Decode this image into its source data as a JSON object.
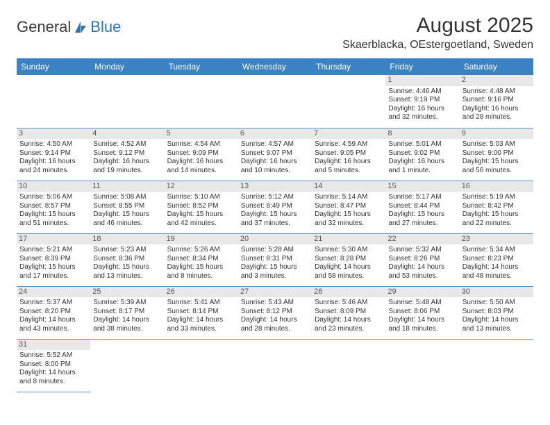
{
  "logo": {
    "text1": "General",
    "text2": "Blue"
  },
  "title": "August 2025",
  "location": "Skaerblacka, OEstergoetland, Sweden",
  "colors": {
    "header_bg": "#3b82c4",
    "header_text": "#ffffff",
    "daynum_bg": "#e8e8e8",
    "border": "#5a8fc0",
    "logo_blue": "#2a72b5"
  },
  "day_headers": [
    "Sunday",
    "Monday",
    "Tuesday",
    "Wednesday",
    "Thursday",
    "Friday",
    "Saturday"
  ],
  "weeks": [
    [
      null,
      null,
      null,
      null,
      null,
      {
        "n": "1",
        "sr": "Sunrise: 4:46 AM",
        "ss": "Sunset: 9:19 PM",
        "d1": "Daylight: 16 hours",
        "d2": "and 32 minutes."
      },
      {
        "n": "2",
        "sr": "Sunrise: 4:48 AM",
        "ss": "Sunset: 9:16 PM",
        "d1": "Daylight: 16 hours",
        "d2": "and 28 minutes."
      }
    ],
    [
      {
        "n": "3",
        "sr": "Sunrise: 4:50 AM",
        "ss": "Sunset: 9:14 PM",
        "d1": "Daylight: 16 hours",
        "d2": "and 24 minutes."
      },
      {
        "n": "4",
        "sr": "Sunrise: 4:52 AM",
        "ss": "Sunset: 9:12 PM",
        "d1": "Daylight: 16 hours",
        "d2": "and 19 minutes."
      },
      {
        "n": "5",
        "sr": "Sunrise: 4:54 AM",
        "ss": "Sunset: 9:09 PM",
        "d1": "Daylight: 16 hours",
        "d2": "and 14 minutes."
      },
      {
        "n": "6",
        "sr": "Sunrise: 4:57 AM",
        "ss": "Sunset: 9:07 PM",
        "d1": "Daylight: 16 hours",
        "d2": "and 10 minutes."
      },
      {
        "n": "7",
        "sr": "Sunrise: 4:59 AM",
        "ss": "Sunset: 9:05 PM",
        "d1": "Daylight: 16 hours",
        "d2": "and 5 minutes."
      },
      {
        "n": "8",
        "sr": "Sunrise: 5:01 AM",
        "ss": "Sunset: 9:02 PM",
        "d1": "Daylight: 16 hours",
        "d2": "and 1 minute."
      },
      {
        "n": "9",
        "sr": "Sunrise: 5:03 AM",
        "ss": "Sunset: 9:00 PM",
        "d1": "Daylight: 15 hours",
        "d2": "and 56 minutes."
      }
    ],
    [
      {
        "n": "10",
        "sr": "Sunrise: 5:06 AM",
        "ss": "Sunset: 8:57 PM",
        "d1": "Daylight: 15 hours",
        "d2": "and 51 minutes."
      },
      {
        "n": "11",
        "sr": "Sunrise: 5:08 AM",
        "ss": "Sunset: 8:55 PM",
        "d1": "Daylight: 15 hours",
        "d2": "and 46 minutes."
      },
      {
        "n": "12",
        "sr": "Sunrise: 5:10 AM",
        "ss": "Sunset: 8:52 PM",
        "d1": "Daylight: 15 hours",
        "d2": "and 42 minutes."
      },
      {
        "n": "13",
        "sr": "Sunrise: 5:12 AM",
        "ss": "Sunset: 8:49 PM",
        "d1": "Daylight: 15 hours",
        "d2": "and 37 minutes."
      },
      {
        "n": "14",
        "sr": "Sunrise: 5:14 AM",
        "ss": "Sunset: 8:47 PM",
        "d1": "Daylight: 15 hours",
        "d2": "and 32 minutes."
      },
      {
        "n": "15",
        "sr": "Sunrise: 5:17 AM",
        "ss": "Sunset: 8:44 PM",
        "d1": "Daylight: 15 hours",
        "d2": "and 27 minutes."
      },
      {
        "n": "16",
        "sr": "Sunrise: 5:19 AM",
        "ss": "Sunset: 8:42 PM",
        "d1": "Daylight: 15 hours",
        "d2": "and 22 minutes."
      }
    ],
    [
      {
        "n": "17",
        "sr": "Sunrise: 5:21 AM",
        "ss": "Sunset: 8:39 PM",
        "d1": "Daylight: 15 hours",
        "d2": "and 17 minutes."
      },
      {
        "n": "18",
        "sr": "Sunrise: 5:23 AM",
        "ss": "Sunset: 8:36 PM",
        "d1": "Daylight: 15 hours",
        "d2": "and 13 minutes."
      },
      {
        "n": "19",
        "sr": "Sunrise: 5:26 AM",
        "ss": "Sunset: 8:34 PM",
        "d1": "Daylight: 15 hours",
        "d2": "and 8 minutes."
      },
      {
        "n": "20",
        "sr": "Sunrise: 5:28 AM",
        "ss": "Sunset: 8:31 PM",
        "d1": "Daylight: 15 hours",
        "d2": "and 3 minutes."
      },
      {
        "n": "21",
        "sr": "Sunrise: 5:30 AM",
        "ss": "Sunset: 8:28 PM",
        "d1": "Daylight: 14 hours",
        "d2": "and 58 minutes."
      },
      {
        "n": "22",
        "sr": "Sunrise: 5:32 AM",
        "ss": "Sunset: 8:26 PM",
        "d1": "Daylight: 14 hours",
        "d2": "and 53 minutes."
      },
      {
        "n": "23",
        "sr": "Sunrise: 5:34 AM",
        "ss": "Sunset: 8:23 PM",
        "d1": "Daylight: 14 hours",
        "d2": "and 48 minutes."
      }
    ],
    [
      {
        "n": "24",
        "sr": "Sunrise: 5:37 AM",
        "ss": "Sunset: 8:20 PM",
        "d1": "Daylight: 14 hours",
        "d2": "and 43 minutes."
      },
      {
        "n": "25",
        "sr": "Sunrise: 5:39 AM",
        "ss": "Sunset: 8:17 PM",
        "d1": "Daylight: 14 hours",
        "d2": "and 38 minutes."
      },
      {
        "n": "26",
        "sr": "Sunrise: 5:41 AM",
        "ss": "Sunset: 8:14 PM",
        "d1": "Daylight: 14 hours",
        "d2": "and 33 minutes."
      },
      {
        "n": "27",
        "sr": "Sunrise: 5:43 AM",
        "ss": "Sunset: 8:12 PM",
        "d1": "Daylight: 14 hours",
        "d2": "and 28 minutes."
      },
      {
        "n": "28",
        "sr": "Sunrise: 5:46 AM",
        "ss": "Sunset: 8:09 PM",
        "d1": "Daylight: 14 hours",
        "d2": "and 23 minutes."
      },
      {
        "n": "29",
        "sr": "Sunrise: 5:48 AM",
        "ss": "Sunset: 8:06 PM",
        "d1": "Daylight: 14 hours",
        "d2": "and 18 minutes."
      },
      {
        "n": "30",
        "sr": "Sunrise: 5:50 AM",
        "ss": "Sunset: 8:03 PM",
        "d1": "Daylight: 14 hours",
        "d2": "and 13 minutes."
      }
    ],
    [
      {
        "n": "31",
        "sr": "Sunrise: 5:52 AM",
        "ss": "Sunset: 8:00 PM",
        "d1": "Daylight: 14 hours",
        "d2": "and 8 minutes."
      },
      null,
      null,
      null,
      null,
      null,
      null
    ]
  ]
}
